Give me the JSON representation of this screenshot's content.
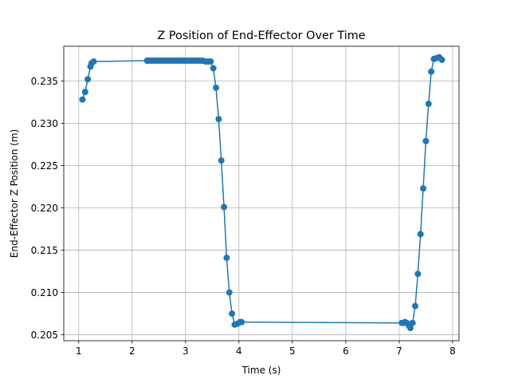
{
  "chart_data": {
    "type": "line",
    "title": "Z Position of End-Effector Over Time",
    "xlabel": "Time (s)",
    "ylabel": "End-Effector Z Position (m)",
    "xlim": [
      0.72,
      8.12
    ],
    "ylim": [
      0.2043,
      0.2391
    ],
    "xticks": [
      1,
      2,
      3,
      4,
      5,
      6,
      7,
      8
    ],
    "xtick_labels": [
      "1",
      "2",
      "3",
      "4",
      "5",
      "6",
      "7",
      "8"
    ],
    "yticks": [
      0.205,
      0.21,
      0.215,
      0.22,
      0.225,
      0.23,
      0.235
    ],
    "ytick_labels": [
      "0.205",
      "0.210",
      "0.215",
      "0.220",
      "0.225",
      "0.230",
      "0.235"
    ],
    "grid": true,
    "marker": "circle",
    "series": [
      {
        "color": "#1f77b4",
        "x": [
          1.07,
          1.12,
          1.17,
          1.22,
          1.24,
          1.28,
          2.28,
          2.32,
          2.37,
          2.42,
          2.47,
          2.52,
          2.57,
          2.62,
          2.67,
          2.72,
          2.77,
          2.82,
          2.87,
          2.92,
          2.97,
          3.02,
          3.07,
          3.12,
          3.17,
          3.22,
          3.27,
          3.32,
          3.37,
          3.42,
          3.47,
          3.52,
          3.57,
          3.62,
          3.67,
          3.72,
          3.77,
          3.82,
          3.87,
          3.92,
          3.97,
          4.02,
          4.05,
          7.05,
          7.08,
          7.11,
          7.14,
          7.18,
          7.21,
          7.25,
          7.3,
          7.35,
          7.4,
          7.45,
          7.5,
          7.55,
          7.6,
          7.65,
          7.7,
          7.75,
          7.8
        ],
        "y": [
          0.2328,
          0.2337,
          0.2352,
          0.2367,
          0.2371,
          0.2373,
          0.2374,
          0.2374,
          0.2374,
          0.2374,
          0.2374,
          0.2374,
          0.2374,
          0.2374,
          0.2374,
          0.2374,
          0.2374,
          0.2374,
          0.2374,
          0.2374,
          0.2374,
          0.2374,
          0.2374,
          0.2374,
          0.2374,
          0.2374,
          0.2374,
          0.2374,
          0.2373,
          0.2373,
          0.2373,
          0.2365,
          0.2342,
          0.2305,
          0.2256,
          0.2201,
          0.2141,
          0.21,
          0.2075,
          0.2062,
          0.2063,
          0.2065,
          0.2065,
          0.2064,
          0.2064,
          0.2065,
          0.2064,
          0.2061,
          0.2058,
          0.2064,
          0.2084,
          0.2122,
          0.2169,
          0.2223,
          0.2279,
          0.2323,
          0.2361,
          0.2376,
          0.2377,
          0.2378,
          0.2375
        ]
      }
    ]
  }
}
